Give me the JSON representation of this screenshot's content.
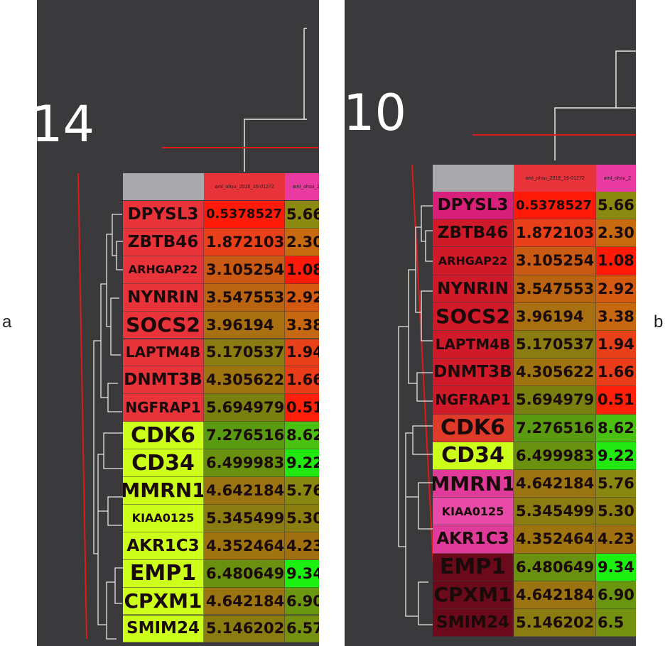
{
  "labels": {
    "a": "a",
    "b": "b"
  },
  "panels": [
    {
      "id": "a",
      "cluster_number": "14",
      "header_col1": "aml_ohsu_2018_16-01272",
      "header_col2": "aml_ohsu_2",
      "rows": [
        {
          "gene": "DPYSL3",
          "v1": "0.5378527",
          "v2": "5.66",
          "gene_color": "#e8333a",
          "c1": "#ff1a0a",
          "c2": "#8a8a10"
        },
        {
          "gene": "ZBTB46",
          "v1": "1.872103",
          "v2": "2.30",
          "gene_color": "#e8333a",
          "c1": "#e8401a",
          "c2": "#c86a10"
        },
        {
          "gene": "ARHGAP22",
          "v1": "3.105254",
          "v2": "1.08",
          "gene_color": "#e8333a",
          "c1": "#c85a14",
          "c2": "#ff1a0a"
        },
        {
          "gene": "NYNRIN",
          "v1": "3.547553",
          "v2": "2.92",
          "gene_color": "#e8333a",
          "c1": "#b86410",
          "c2": "#d45a12"
        },
        {
          "gene": "SOCS2",
          "v1": "3.96194",
          "v2": "3.38",
          "gene_color": "#e8333a",
          "c1": "#a87010",
          "c2": "#c66810"
        },
        {
          "gene": "LAPTM4B",
          "v1": "5.170537",
          "v2": "1.94",
          "gene_color": "#e8333a",
          "c1": "#8a7c10",
          "c2": "#e84018"
        },
        {
          "gene": "DNMT3B",
          "v1": "4.305622",
          "v2": "1.66",
          "gene_color": "#e8333a",
          "c1": "#9e7410",
          "c2": "#ea3c18"
        },
        {
          "gene": "NGFRAP1",
          "v1": "5.694979",
          "v2": "0.51",
          "gene_color": "#e8333a",
          "c1": "#7a8010",
          "c2": "#ff200c"
        },
        {
          "gene": "CDK6",
          "v1": "7.276516",
          "v2": "8.62",
          "gene_color": "#ccff1a",
          "c1": "#5a9a10",
          "c2": "#4ac010"
        },
        {
          "gene": "CD34",
          "v1": "6.499983",
          "v2": "9.22",
          "gene_color": "#ccff1a",
          "c1": "#6a9010",
          "c2": "#22e812"
        },
        {
          "gene": "MMRN1",
          "v1": "4.642184",
          "v2": "5.76",
          "gene_color": "#ccff1a",
          "c1": "#9a7410",
          "c2": "#888810"
        },
        {
          "gene": "KIAA0125",
          "v1": "5.345499",
          "v2": "5.30",
          "gene_color": "#ccff1a",
          "c1": "#8a7c10",
          "c2": "#8a7e10"
        },
        {
          "gene": "AKR1C3",
          "v1": "4.352464",
          "v2": "4.23",
          "gene_color": "#ccff1a",
          "c1": "#9e7410",
          "c2": "#a07010"
        },
        {
          "gene": "EMP1",
          "v1": "6.480649",
          "v2": "9.34",
          "gene_color": "#ccff1a",
          "c1": "#6a9010",
          "c2": "#1cf012"
        },
        {
          "gene": "CPXM1",
          "v1": "4.642184",
          "v2": "6.90",
          "gene_color": "#ccff1a",
          "c1": "#9a7410",
          "c2": "#6a9610"
        },
        {
          "gene": "SMIM24",
          "v1": "5.146202",
          "v2": "6.57",
          "gene_color": "#ccff1a",
          "c1": "#8a7c10",
          "c2": "#749210"
        }
      ]
    },
    {
      "id": "b",
      "cluster_number": "10",
      "header_col1": "aml_ohsu_2018_16-01272",
      "header_col2": "aml_ohsu_2",
      "rows": [
        {
          "gene": "DPYSL3",
          "v1": "0.5378527",
          "v2": "5.66",
          "gene_color": "#d8207a",
          "c1": "#ff1a0a",
          "c2": "#8a8a10"
        },
        {
          "gene": "ZBTB46",
          "v1": "1.872103",
          "v2": "2.30",
          "gene_color": "#d01a2a",
          "c1": "#e8401a",
          "c2": "#c86a10"
        },
        {
          "gene": "ARHGAP22",
          "v1": "3.105254",
          "v2": "1.08",
          "gene_color": "#d01a2a",
          "c1": "#c85a14",
          "c2": "#ff1a0a"
        },
        {
          "gene": "NYNRIN",
          "v1": "3.547553",
          "v2": "2.92",
          "gene_color": "#d01a2a",
          "c1": "#b86410",
          "c2": "#d45a12"
        },
        {
          "gene": "SOCS2",
          "v1": "3.96194",
          "v2": "3.38",
          "gene_color": "#d01a2a",
          "c1": "#a87010",
          "c2": "#c66810"
        },
        {
          "gene": "LAPTM4B",
          "v1": "5.170537",
          "v2": "1.94",
          "gene_color": "#d01a2a",
          "c1": "#8a7c10",
          "c2": "#e84018"
        },
        {
          "gene": "DNMT3B",
          "v1": "4.305622",
          "v2": "1.66",
          "gene_color": "#d01a2a",
          "c1": "#9e7410",
          "c2": "#ea3c18"
        },
        {
          "gene": "NGFRAP1",
          "v1": "5.694979",
          "v2": "0.51",
          "gene_color": "#d01a2a",
          "c1": "#7a8010",
          "c2": "#ff200c"
        },
        {
          "gene": "CDK6",
          "v1": "7.276516",
          "v2": "8.62",
          "gene_color": "#e03a2a",
          "c1": "#5a9a10",
          "c2": "#4ac010"
        },
        {
          "gene": "CD34",
          "v1": "6.499983",
          "v2": "9.22",
          "gene_color": "#ccff1a",
          "c1": "#6a9010",
          "c2": "#22e812"
        },
        {
          "gene": "MMRN1",
          "v1": "4.642184",
          "v2": "5.76",
          "gene_color": "#e03a9a",
          "c1": "#9a7410",
          "c2": "#888810"
        },
        {
          "gene": "KIAA0125",
          "v1": "5.345499",
          "v2": "5.30",
          "gene_color": "#e84aa8",
          "c1": "#8a7c10",
          "c2": "#8a7e10"
        },
        {
          "gene": "AKR1C3",
          "v1": "4.352464",
          "v2": "4.23",
          "gene_color": "#e03a9a",
          "c1": "#9e7410",
          "c2": "#a07010"
        },
        {
          "gene": "EMP1",
          "v1": "6.480649",
          "v2": "9.34",
          "gene_color": "#6a0a1a",
          "c1": "#6a9010",
          "c2": "#1cf012"
        },
        {
          "gene": "CPXM1",
          "v1": "4.642184",
          "v2": "6.90",
          "gene_color": "#6a0a1a",
          "c1": "#9a7410",
          "c2": "#6a9610"
        },
        {
          "gene": "SMIM24",
          "v1": "5.146202",
          "v2": "6.5",
          "gene_color": "#6a0a1a",
          "c1": "#8a7c10",
          "c2": "#749210"
        }
      ]
    }
  ]
}
